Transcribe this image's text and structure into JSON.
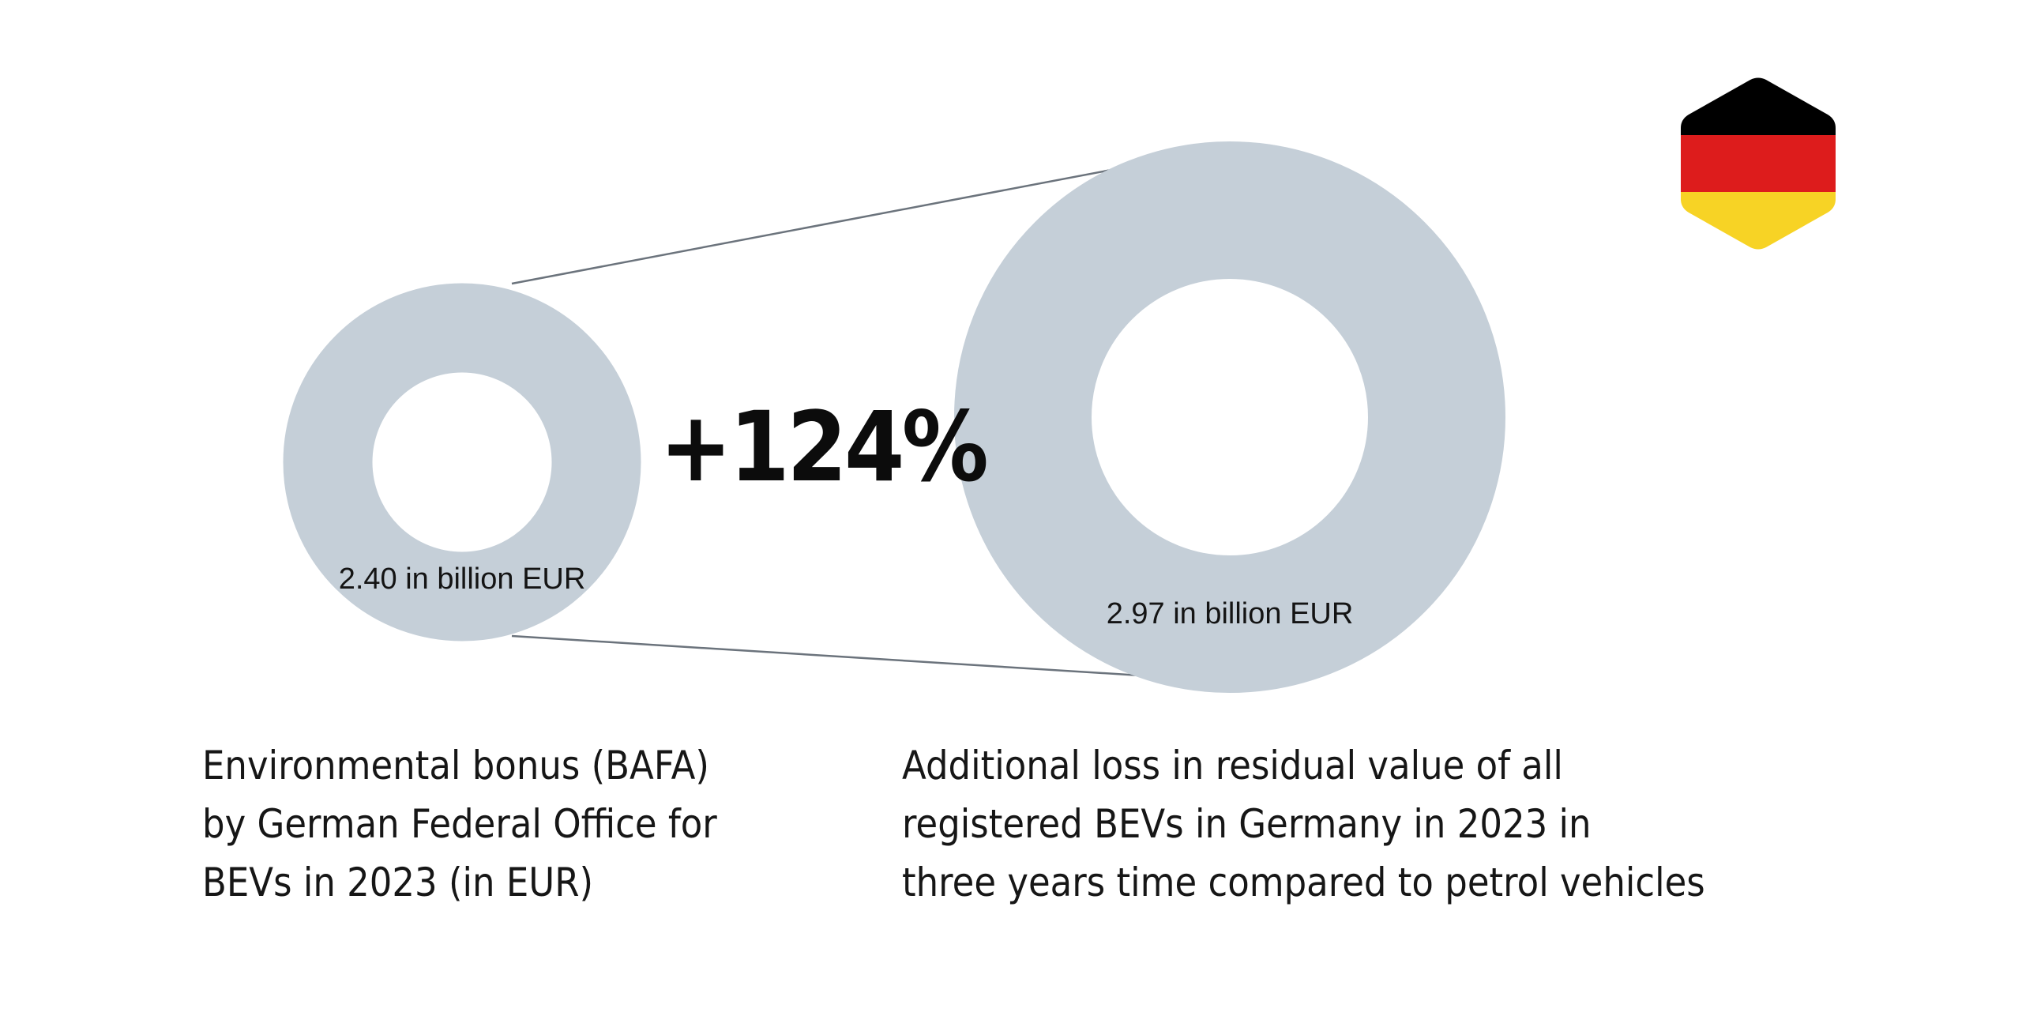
{
  "chart_data": {
    "type": "donut-comparison",
    "unit": "in billion EUR",
    "series": [
      {
        "value": 2.4,
        "value_label": "2.40 in billion EUR",
        "caption": [
          "Environmental bonus (BAFA)",
          "by German Federal Office for",
          "BEVs in 2023 (in EUR)"
        ]
      },
      {
        "value": 2.97,
        "value_label": "2.97 in billion EUR",
        "caption": [
          "Additional loss in residual value of all",
          "registered BEVs in Germany in 2023 in",
          "three years time compared to petrol vehicles"
        ]
      }
    ],
    "comparison_label": "+124%",
    "colors": {
      "ring": "#c5cfd8",
      "connector": "#6b737c",
      "flag_black": "#000000",
      "flag_red": "#dd1c1c",
      "flag_gold": "#f7d325"
    }
  },
  "icons": {
    "flag": "germany-flag-hexagon-icon"
  }
}
